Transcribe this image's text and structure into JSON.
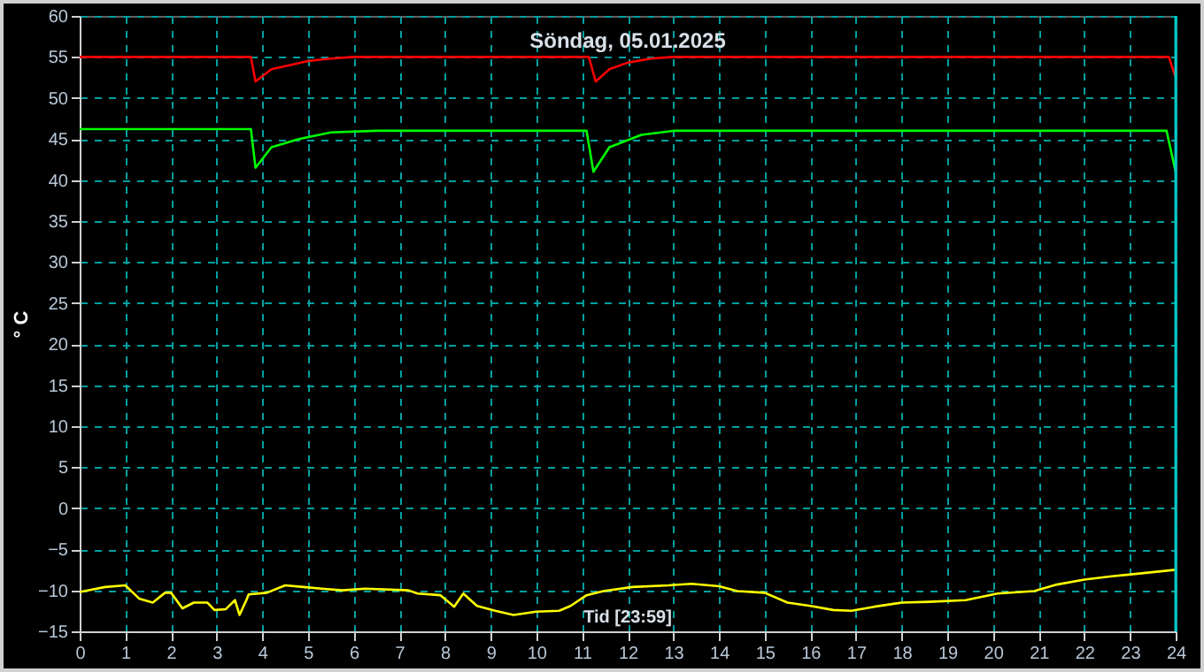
{
  "chart_data": {
    "type": "line",
    "title": "Söndag, 05.01.2025",
    "ylabel": "° C",
    "annotations": [
      "Tid [23:59]"
    ],
    "xlim": [
      0,
      24
    ],
    "xticks": [
      0,
      1,
      2,
      3,
      4,
      5,
      6,
      7,
      8,
      9,
      10,
      11,
      12,
      13,
      14,
      15,
      16,
      17,
      18,
      19,
      20,
      21,
      22,
      23,
      24
    ],
    "ylim": [
      -15,
      60
    ],
    "yticks": [
      -15,
      -10,
      -5,
      0,
      5,
      10,
      15,
      20,
      25,
      30,
      35,
      40,
      45,
      50,
      55,
      60
    ],
    "grid": true,
    "line_style": "solid",
    "marker": "none",
    "ref_lines": [
      {
        "axis": "x",
        "value": 24,
        "color": "#00c8c8"
      }
    ],
    "series": [
      {
        "color": "#ff0000",
        "x": [
          0,
          3.75,
          3.85,
          4.2,
          4.6,
          5,
          5.5,
          6,
          11.15,
          11.3,
          11.6,
          12,
          12.5,
          13,
          23.85,
          24
        ],
        "values": [
          55,
          55,
          52,
          53.5,
          54,
          54.5,
          54.8,
          55,
          55,
          52,
          53.5,
          54.3,
          54.8,
          55,
          55,
          52.5
        ]
      },
      {
        "color": "#00ff00",
        "x": [
          0,
          3.75,
          3.85,
          4.2,
          4.8,
          5.5,
          6.5,
          11.1,
          11.25,
          11.6,
          12.3,
          13,
          23.8,
          24
        ],
        "values": [
          46.2,
          46.2,
          41.5,
          44,
          45,
          45.8,
          46,
          46,
          41,
          44,
          45.5,
          46,
          46,
          41
        ]
      },
      {
        "color": "#ffff00",
        "x": [
          0,
          0.56,
          1,
          1.3,
          1.6,
          1.87,
          2,
          2.25,
          2.5,
          2.8,
          2.95,
          3.2,
          3.4,
          3.5,
          3.65,
          3.7,
          4.1,
          4.5,
          4.9,
          5.3,
          5.75,
          6.25,
          7.2,
          7.4,
          7.9,
          8.2,
          8.4,
          8.7,
          9.1,
          9.5,
          10,
          10.5,
          10.75,
          11.1,
          11.47,
          12.1,
          12.9,
          13.4,
          14,
          14.4,
          15,
          15.5,
          16,
          16.5,
          16.9,
          17.4,
          18,
          18.6,
          19.4,
          20.1,
          20.9,
          21.4,
          22,
          22.6,
          23.3,
          24
        ],
        "values": [
          -10.2,
          -9.6,
          -9.4,
          -11,
          -11.5,
          -10.3,
          -10.3,
          -12.2,
          -11.5,
          -11.5,
          -12.4,
          -12.3,
          -11.2,
          -13,
          -11.2,
          -10.5,
          -10.3,
          -9.4,
          -9.6,
          -9.8,
          -10,
          -9.8,
          -10,
          -10.4,
          -10.6,
          -12,
          -10.4,
          -11.9,
          -12.5,
          -13,
          -12.6,
          -12.5,
          -11.9,
          -10.6,
          -10.1,
          -9.6,
          -9.4,
          -9.2,
          -9.5,
          -10.1,
          -10.3,
          -11.5,
          -11.9,
          -12.4,
          -12.5,
          -12,
          -11.5,
          -11.4,
          -11.2,
          -10.4,
          -10.1,
          -9.3,
          -8.7,
          -8.3,
          -7.9,
          -7.5
        ]
      }
    ]
  }
}
